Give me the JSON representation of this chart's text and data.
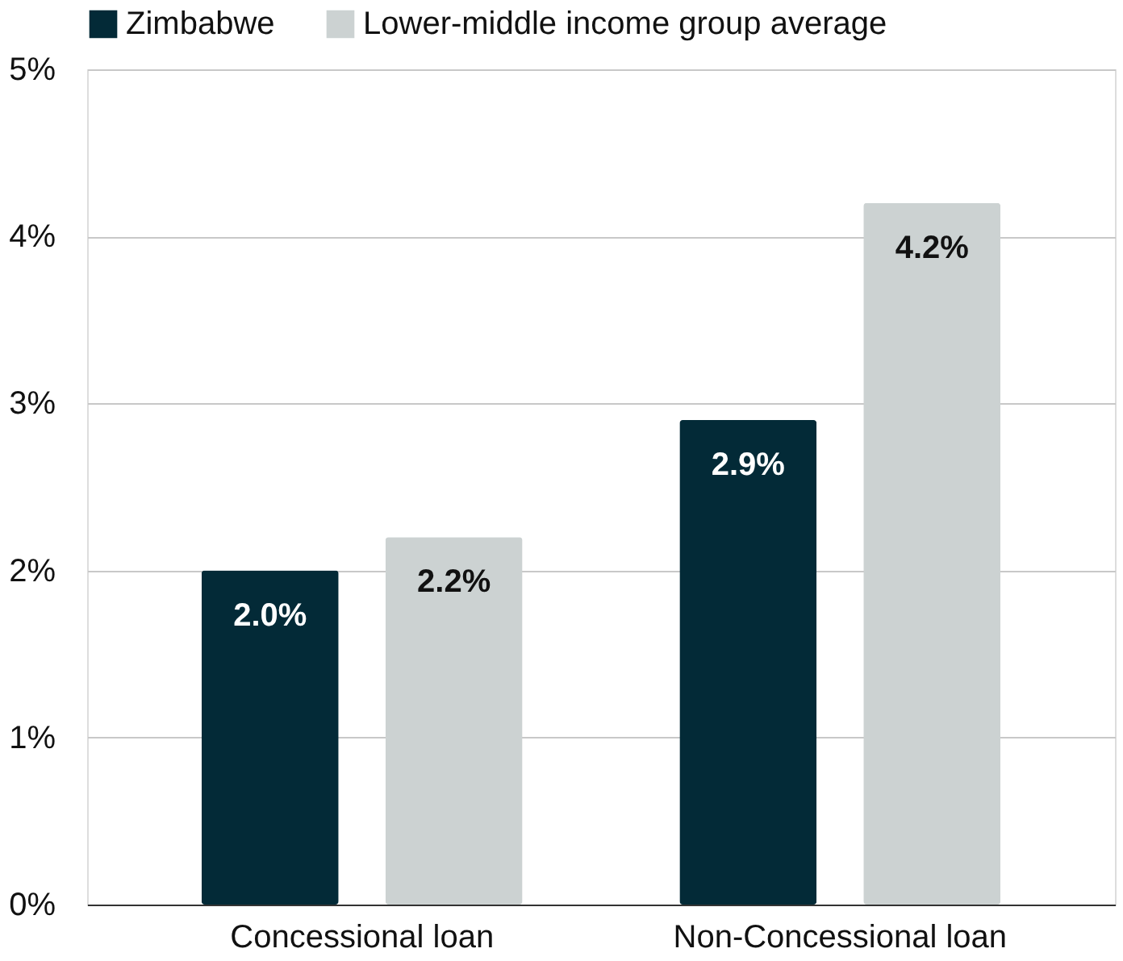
{
  "chart_data": {
    "type": "bar",
    "categories": [
      "Concessional loan",
      "Non-Concessional loan"
    ],
    "series": [
      {
        "name": "Zimbabwe",
        "color": "#032a37",
        "values": [
          2.0,
          2.9
        ],
        "value_labels": [
          "2.0%",
          "2.9%"
        ]
      },
      {
        "name": "Lower-middle income group average",
        "color": "#ccd2d2",
        "values": [
          2.2,
          4.2
        ],
        "value_labels": [
          "2.2%",
          "4.2%"
        ]
      }
    ],
    "ylim": [
      0,
      5
    ],
    "yticks": [
      {
        "value": 0,
        "label": "0%"
      },
      {
        "value": 1,
        "label": "1%"
      },
      {
        "value": 2,
        "label": "2%"
      },
      {
        "value": 3,
        "label": "3%"
      },
      {
        "value": 4,
        "label": "4%"
      },
      {
        "value": 5,
        "label": "5%"
      }
    ],
    "grid": "y",
    "legend": "top"
  }
}
